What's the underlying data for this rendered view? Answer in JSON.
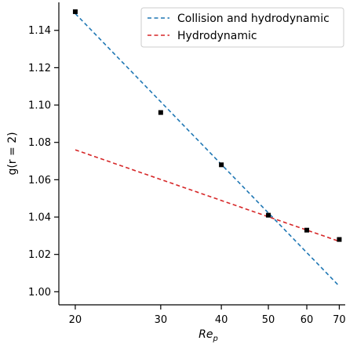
{
  "chart_data": {
    "type": "scatter",
    "xlabel": "Re",
    "xlabel_subscript": "p",
    "ylabel": "g(r = 2)",
    "x_scale": "log",
    "xlim": [
      18.5,
      72
    ],
    "ylim": [
      0.993,
      1.155
    ],
    "x_ticks": [
      20,
      30,
      40,
      50,
      60,
      70
    ],
    "y_ticks": [
      1.0,
      1.02,
      1.04,
      1.06,
      1.08,
      1.1,
      1.12,
      1.14
    ],
    "y_tick_labels": [
      "1.00",
      "1.02",
      "1.04",
      "1.06",
      "1.08",
      "1.10",
      "1.12",
      "1.14"
    ],
    "grid": false,
    "legend_position": "top-right",
    "points": {
      "x": [
        20,
        30,
        40,
        50,
        60,
        70
      ],
      "y": [
        1.15,
        1.096,
        1.068,
        1.041,
        1.033,
        1.028
      ],
      "marker": "square",
      "color": "#000000"
    },
    "series": [
      {
        "name": "Collision and hydrodynamic",
        "style": "dashed",
        "color": "#1f77b4",
        "x": [
          20,
          70
        ],
        "y": [
          1.149,
          1.003
        ]
      },
      {
        "name": "Hydrodynamic",
        "style": "dashed",
        "color": "#d62728",
        "x": [
          20,
          70
        ],
        "y": [
          1.076,
          1.027
        ]
      }
    ]
  }
}
